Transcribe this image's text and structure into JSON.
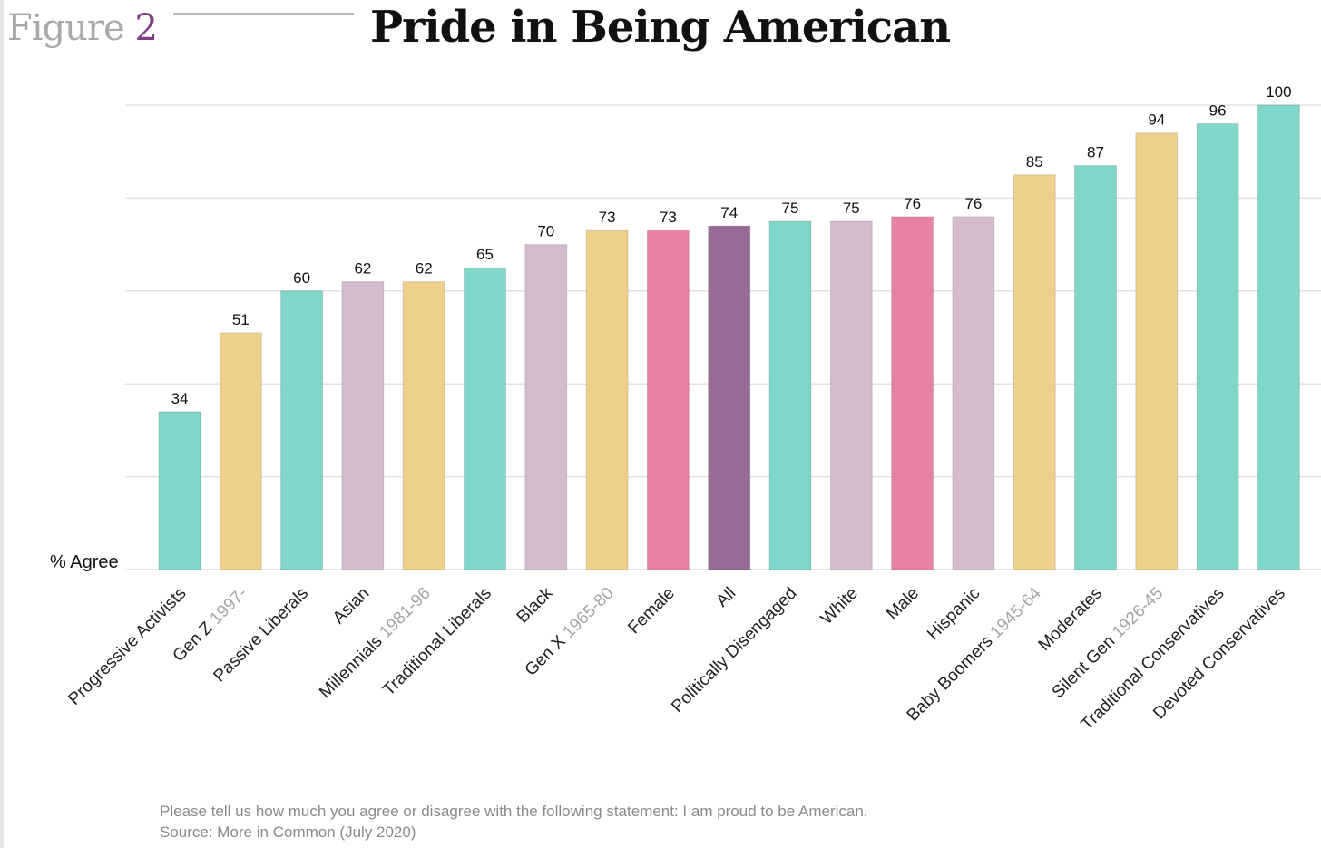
{
  "header": {
    "figure_word": "Figure",
    "figure_number": "2"
  },
  "chart_data": {
    "type": "bar",
    "title": "Pride in Being American",
    "ylabel": "% Agree",
    "xlabel": "",
    "ylim": [
      0,
      100
    ],
    "grid": true,
    "gridlines": [
      20,
      40,
      60,
      80,
      100
    ],
    "categories": [
      {
        "label": "Progressive Activists",
        "sub": "",
        "color": "#80d6c8"
      },
      {
        "label": "Gen Z",
        "sub": "1997-",
        "color": "#eed08b"
      },
      {
        "label": "Passive Liberals",
        "sub": "",
        "color": "#80d6c8"
      },
      {
        "label": "Asian",
        "sub": "",
        "color": "#d3bccd"
      },
      {
        "label": "Millennials",
        "sub": "1981-96",
        "color": "#eed08b"
      },
      {
        "label": "Traditional Liberals",
        "sub": "",
        "color": "#80d6c8"
      },
      {
        "label": "Black",
        "sub": "",
        "color": "#d3bccd"
      },
      {
        "label": "Gen X",
        "sub": "1965-80",
        "color": "#eed08b"
      },
      {
        "label": "Female",
        "sub": "",
        "color": "#e683a2"
      },
      {
        "label": "All",
        "sub": "",
        "color": "#976b96"
      },
      {
        "label": "Politically Disengaged",
        "sub": "",
        "color": "#80d6c8"
      },
      {
        "label": "White",
        "sub": "",
        "color": "#d3bccd"
      },
      {
        "label": "Male",
        "sub": "",
        "color": "#e683a2"
      },
      {
        "label": "Hispanic",
        "sub": "",
        "color": "#d3bccd"
      },
      {
        "label": "Baby Boomers",
        "sub": "1945-64",
        "color": "#eed08b"
      },
      {
        "label": "Moderates",
        "sub": "",
        "color": "#80d6c8"
      },
      {
        "label": "Silent Gen",
        "sub": "1926-45",
        "color": "#eed08b"
      },
      {
        "label": "Traditional Conservatives",
        "sub": "",
        "color": "#80d6c8"
      },
      {
        "label": "Devoted Conservatives",
        "sub": "",
        "color": "#80d6c8"
      }
    ],
    "values": [
      34,
      51,
      60,
      62,
      62,
      65,
      70,
      73,
      73,
      74,
      75,
      75,
      76,
      76,
      85,
      87,
      94,
      96,
      100
    ]
  },
  "footer": {
    "question": "Please tell us how much you agree or disagree with the following statement: I am proud to be American.",
    "source": "Source: More in Common (July 2020)"
  }
}
